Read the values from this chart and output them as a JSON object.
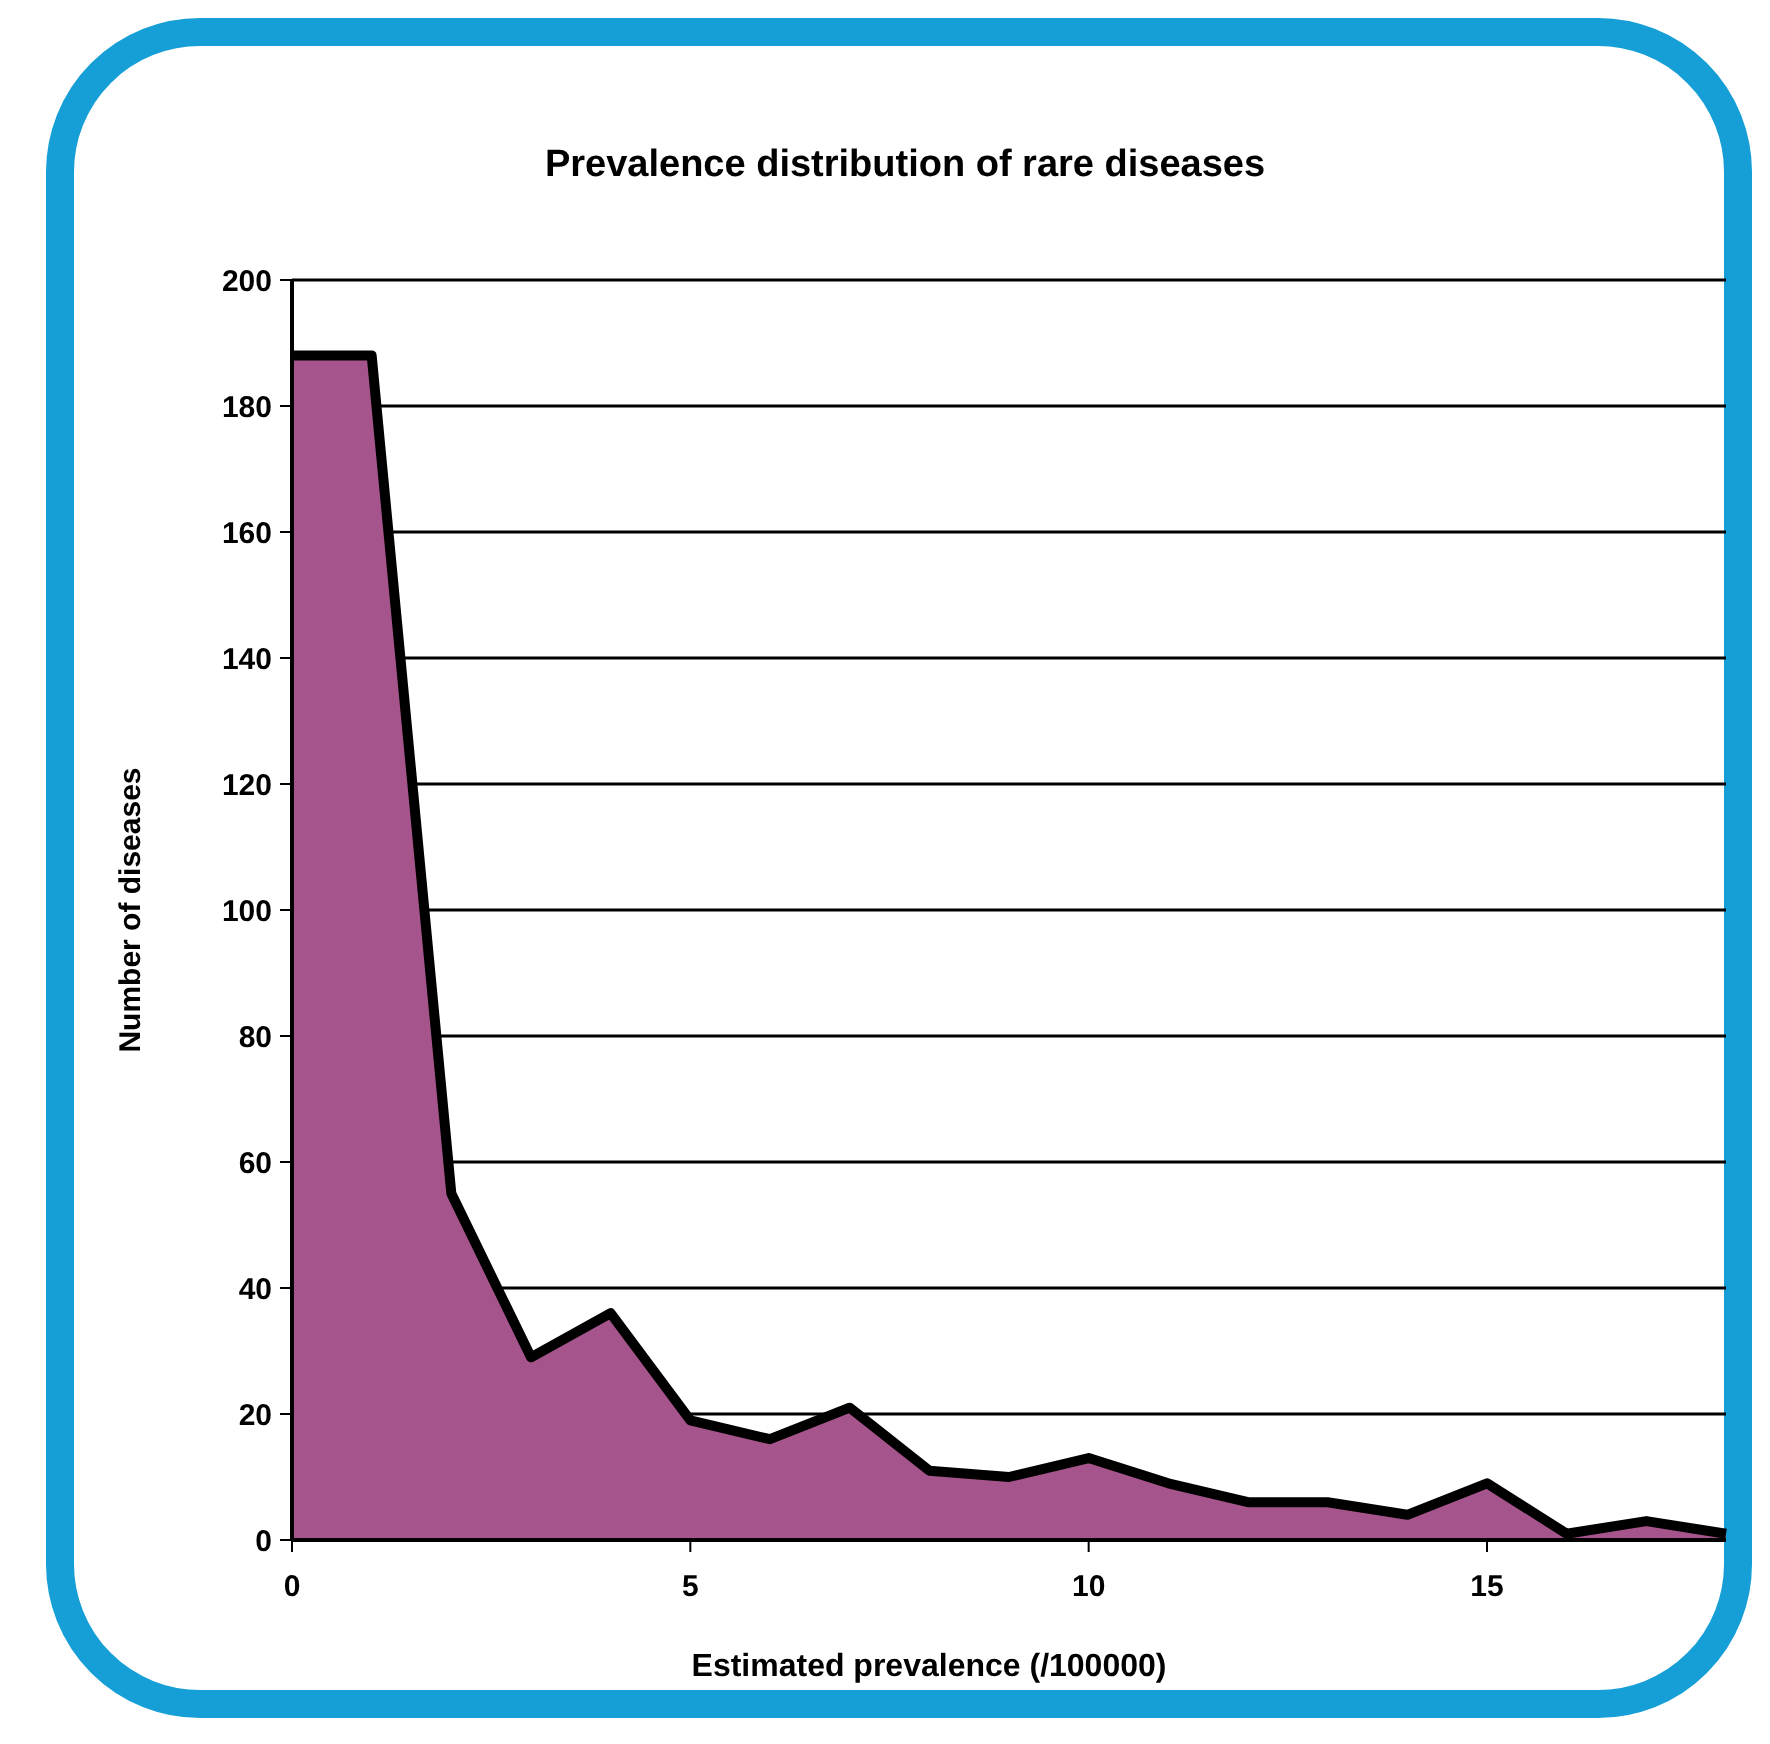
{
  "chart_data": {
    "type": "area",
    "title": "Prevalence distribution of rare diseases",
    "xlabel": "Estimated prevalence (/100000)",
    "ylabel": "Number of diseases",
    "x": [
      0,
      1,
      2,
      3,
      4,
      5,
      6,
      7,
      8,
      9,
      10,
      11,
      12,
      13,
      14,
      15,
      16,
      17,
      18
    ],
    "series": [
      {
        "color": "#a5548c",
        "values": [
          188,
          188,
          55,
          29,
          36,
          19,
          16,
          21,
          11,
          10,
          13,
          9,
          6,
          6,
          4,
          9,
          1,
          3,
          1
        ]
      }
    ],
    "xlim": [
      0,
      18
    ],
    "xticks": [
      0,
      5,
      10,
      15
    ],
    "ylim": [
      0,
      200
    ],
    "yticks": [
      0,
      20,
      40,
      60,
      80,
      100,
      120,
      140,
      160,
      180,
      200
    ],
    "grid": "y"
  }
}
